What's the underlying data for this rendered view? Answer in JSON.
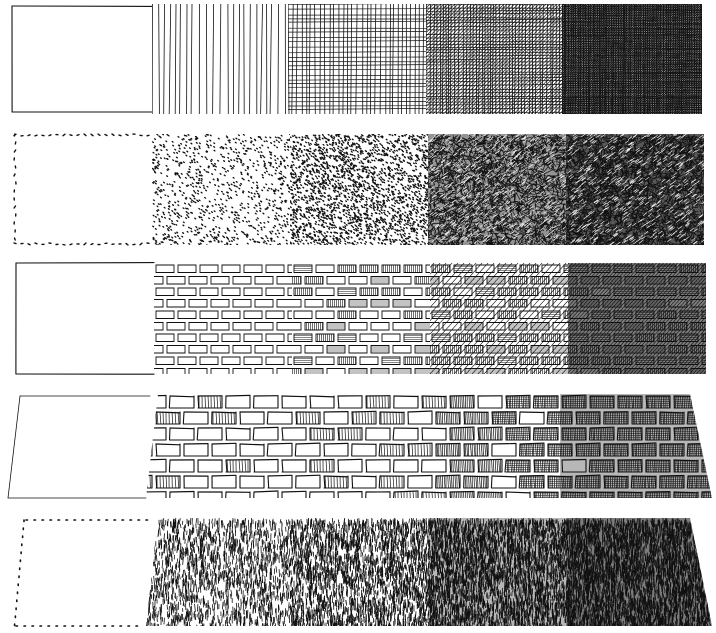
{
  "figure": {
    "background": "#ffffff",
    "ink": "#111111",
    "rows": [
      {
        "name": "row-hatch-crosshatch",
        "style": "line hatching to cross hatching",
        "tones": [
          0.0,
          0.25,
          0.5,
          0.75,
          0.95
        ]
      },
      {
        "name": "row-stipple",
        "style": "stipple dots to dense scribble",
        "tones": [
          0.0,
          0.25,
          0.5,
          0.75,
          0.95
        ]
      },
      {
        "name": "row-brick-wall",
        "style": "brick outlines with hatched fills",
        "tones": [
          0.0,
          0.25,
          0.5,
          0.75,
          0.95
        ]
      },
      {
        "name": "row-roof-shingles",
        "style": "perspective shingles with hatched fills",
        "tones": [
          0.0,
          0.25,
          0.5,
          0.75,
          0.95
        ]
      },
      {
        "name": "row-grass-strokes",
        "style": "short vertical strokes, perspective",
        "tones": [
          0.0,
          0.25,
          0.5,
          0.75,
          0.95
        ]
      }
    ]
  }
}
